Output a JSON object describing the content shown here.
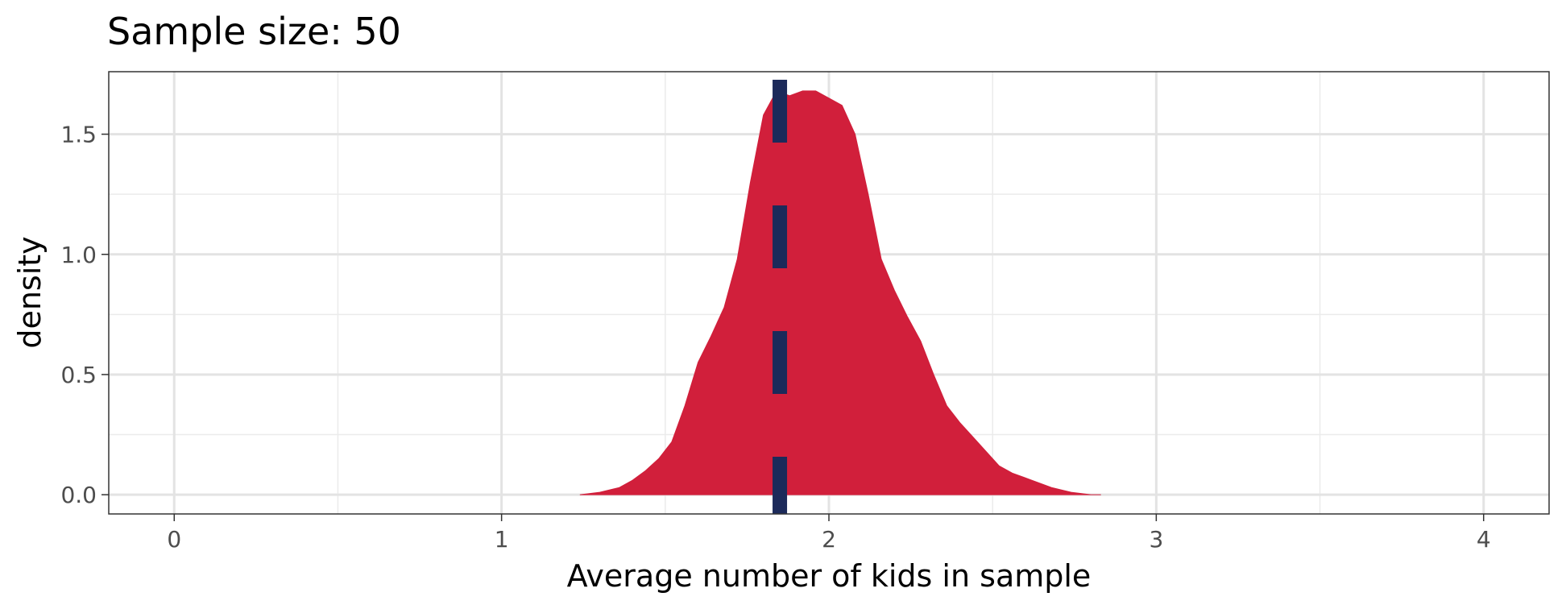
{
  "chart_data": {
    "type": "area",
    "title": "Sample size: 50",
    "xlabel": "Average number of kids in sample",
    "ylabel": "density",
    "xlim": [
      -0.2,
      4.2
    ],
    "ylim": [
      -0.08,
      1.76
    ],
    "x_ticks": [
      0,
      1,
      2,
      3,
      4
    ],
    "x_tick_labels": [
      "0",
      "1",
      "2",
      "3",
      "4"
    ],
    "y_ticks": [
      0.0,
      0.5,
      1.0,
      1.5
    ],
    "y_tick_labels": [
      "0.0",
      "0.5",
      "1.0",
      "1.5"
    ],
    "grid": true,
    "series": [
      {
        "fill": "#d11f3b",
        "x": [
          1.24,
          1.3,
          1.36,
          1.4,
          1.44,
          1.48,
          1.52,
          1.56,
          1.6,
          1.64,
          1.68,
          1.72,
          1.76,
          1.8,
          1.84,
          1.88,
          1.92,
          1.96,
          2.0,
          2.04,
          2.08,
          2.12,
          2.16,
          2.2,
          2.24,
          2.28,
          2.32,
          2.36,
          2.4,
          2.44,
          2.48,
          2.52,
          2.56,
          2.62,
          2.68,
          2.74,
          2.8,
          2.83
        ],
        "y": [
          0.0,
          0.01,
          0.03,
          0.06,
          0.1,
          0.15,
          0.22,
          0.37,
          0.55,
          0.66,
          0.78,
          0.98,
          1.3,
          1.58,
          1.68,
          1.66,
          1.68,
          1.68,
          1.65,
          1.62,
          1.5,
          1.25,
          0.98,
          0.85,
          0.74,
          0.64,
          0.5,
          0.37,
          0.3,
          0.24,
          0.18,
          0.12,
          0.09,
          0.06,
          0.03,
          0.01,
          0.0,
          0.0
        ]
      }
    ],
    "reference_line": {
      "x": 1.85,
      "style": "dashed",
      "color": "#1c2a5a"
    }
  }
}
